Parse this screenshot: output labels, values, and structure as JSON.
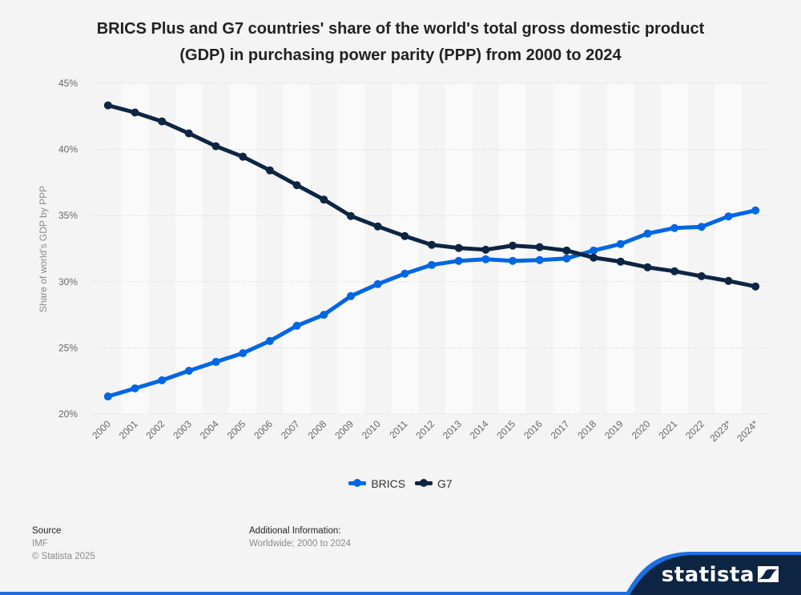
{
  "chart_data": {
    "type": "line",
    "title": "BRICS Plus and G7 countries' share of the world's total gross domestic product (GDP) in purchasing power parity (PPP) from 2000 to 2024",
    "title_lines": [
      "BRICS Plus and G7 countries' share of the world's total gross domestic product",
      "(GDP) in purchasing power parity (PPP) from 2000 to 2024"
    ],
    "xlabel": "",
    "ylabel": "Share of world's GDP by PPP",
    "x": [
      "2000",
      "2001",
      "2002",
      "2003",
      "2004",
      "2005",
      "2006",
      "2007",
      "2008",
      "2009",
      "2010",
      "2011",
      "2012",
      "2013",
      "2014",
      "2015",
      "2016",
      "2017",
      "2018",
      "2019",
      "2020",
      "2021",
      "2022",
      "2023*",
      "2024*"
    ],
    "ylim": [
      20,
      45
    ],
    "yticks": [
      20,
      25,
      30,
      35,
      40,
      45
    ],
    "ytick_labels": [
      "20%",
      "25%",
      "30%",
      "35%",
      "40%",
      "45%"
    ],
    "grid": true,
    "legend_position": "bottom",
    "series": [
      {
        "name": "BRICS",
        "color": "#0066e3",
        "values": [
          21.33,
          21.94,
          22.55,
          23.27,
          23.94,
          24.6,
          25.52,
          26.67,
          27.5,
          28.91,
          29.82,
          30.61,
          31.27,
          31.58,
          31.7,
          31.58,
          31.64,
          31.76,
          32.36,
          32.85,
          33.64,
          34.06,
          34.15,
          34.94,
          35.39
        ]
      },
      {
        "name": "G7",
        "color": "#0d2543",
        "values": [
          43.33,
          42.79,
          42.12,
          41.21,
          40.24,
          39.45,
          38.42,
          37.3,
          36.21,
          34.97,
          34.18,
          33.45,
          32.79,
          32.55,
          32.42,
          32.73,
          32.61,
          32.36,
          31.82,
          31.52,
          31.09,
          30.79,
          30.42,
          30.06,
          29.64
        ]
      }
    ]
  },
  "footer": {
    "source_heading": "Source",
    "source_value": "IMF",
    "copyright": "© Statista 2025",
    "additional_heading": "Additional Information:",
    "additional_value": "Worldwide; 2000 to 2024"
  },
  "brand": {
    "name": "statista",
    "tab_color": "#0d2543",
    "accent_color": "#1f6fe0"
  }
}
